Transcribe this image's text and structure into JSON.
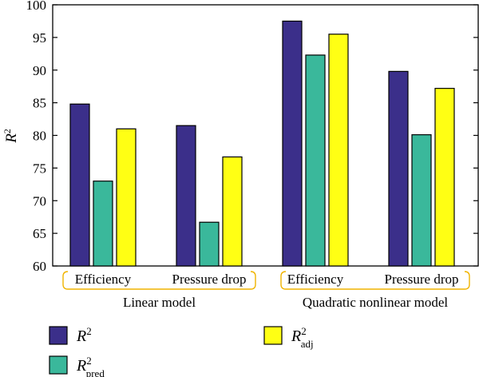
{
  "chart_data": {
    "type": "bar",
    "ylabel": "R",
    "ylabel_sup": "2",
    "ylim": [
      60,
      100
    ],
    "yticks": [
      60,
      65,
      70,
      75,
      80,
      85,
      90,
      95,
      100
    ],
    "grid": false,
    "categories": [
      "Efficiency",
      "Pressure drop",
      "Efficiency",
      "Pressure drop"
    ],
    "groups": [
      {
        "label": "Linear model",
        "categories": [
          0,
          1
        ]
      },
      {
        "label": "Quadratic nonlinear model",
        "categories": [
          2,
          3
        ]
      }
    ],
    "series": [
      {
        "name": "R",
        "sup": "2",
        "sub": "",
        "color": "#3b2f8a",
        "values": [
          84.8,
          81.5,
          97.5,
          89.8
        ]
      },
      {
        "name": "R",
        "sup": "2",
        "sub": "pred",
        "color": "#3ab89b",
        "values": [
          73.0,
          66.7,
          92.3,
          80.1
        ]
      },
      {
        "name": "R",
        "sup": "2",
        "sub": "adj",
        "color": "#ffff14",
        "values": [
          81.0,
          76.7,
          95.5,
          87.2
        ]
      }
    ],
    "legend": {
      "placement": "bottom"
    },
    "colors": {
      "bracket": "#f0b400",
      "axis": "#000000"
    }
  }
}
